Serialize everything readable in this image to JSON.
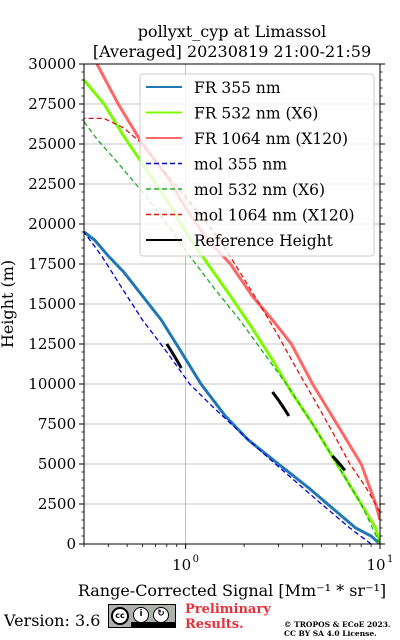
{
  "chart_data": {
    "type": "line",
    "title": "pollyxt_cyp at Limassol",
    "subtitle": "[Averaged] 20230819 21:00-21:59",
    "xlabel": "Range-Corrected Signal [Mm⁻¹ * sr⁻¹]",
    "ylabel": "Height (m)",
    "xscale": "log",
    "xlim": [
      0.3,
      10
    ],
    "ylim": [
      0,
      30000
    ],
    "x_tick_labels": [
      {
        "value": 1,
        "label": "10",
        "exp": "0"
      },
      {
        "value": 10,
        "label": "10",
        "exp": "1"
      }
    ],
    "y_ticks": [
      0,
      2500,
      5000,
      7500,
      10000,
      12500,
      15000,
      17500,
      20000,
      22500,
      25000,
      27500,
      30000
    ],
    "grid": true,
    "legend_position": "top-right",
    "series": [
      {
        "name": "FR 355 nm",
        "color": "#1f77b4",
        "style": "solid",
        "x": [
          10.0,
          9.0,
          7.5,
          6.0,
          4.3,
          3.0,
          2.1,
          1.6,
          1.2,
          0.95,
          0.75,
          0.6,
          0.48,
          0.4,
          0.34,
          0.3
        ],
        "y": [
          0,
          500,
          1000,
          2000,
          3500,
          5000,
          6500,
          8000,
          10000,
          12000,
          14000,
          15500,
          17000,
          18000,
          19000,
          19500
        ]
      },
      {
        "name": "FR 532 nm (X6)",
        "color": "#7cfc00",
        "style": "solid",
        "x": [
          10.0,
          9.5,
          8.0,
          6.0,
          4.5,
          3.5,
          2.8,
          2.2,
          1.7,
          1.3,
          1.0,
          0.8,
          0.62,
          0.48,
          0.38,
          0.3
        ],
        "y": [
          0,
          1000,
          2500,
          5000,
          7500,
          9500,
          11500,
          13500,
          15500,
          17500,
          19500,
          21500,
          23500,
          25500,
          27500,
          29000
        ]
      },
      {
        "name": "FR 1064 nm (X120)",
        "color": "#ff6666",
        "style": "solid",
        "x": [
          10.0,
          9.5,
          8.0,
          6.0,
          4.5,
          3.5,
          2.8,
          2.2,
          1.7,
          1.3,
          1.0,
          0.8,
          0.6,
          0.45,
          0.35
        ],
        "y": [
          1500,
          2500,
          5000,
          7500,
          10000,
          12500,
          14000,
          15500,
          17500,
          19000,
          21000,
          23000,
          25000,
          27500,
          30000
        ]
      },
      {
        "name": "mol 355 nm",
        "color": "#0000cc",
        "style": "dashed",
        "x": [
          9.0,
          7.0,
          5.0,
          3.6,
          2.6,
          1.9,
          1.4,
          1.05,
          0.8,
          0.6,
          0.47,
          0.37,
          0.3
        ],
        "y": [
          0,
          1000,
          2500,
          4000,
          5500,
          7000,
          8500,
          10000,
          12000,
          14000,
          16000,
          18000,
          19500
        ]
      },
      {
        "name": "mol 532 nm (X6)",
        "color": "#22aa22",
        "style": "dashed",
        "x": [
          10.0,
          8.0,
          6.0,
          4.5,
          3.3,
          2.5,
          1.9,
          1.4,
          1.05,
          0.8,
          0.6,
          0.45,
          0.35,
          0.3
        ],
        "y": [
          0,
          2500,
          5000,
          7500,
          10000,
          12000,
          14000,
          16000,
          18000,
          20000,
          22000,
          23800,
          25300,
          26400
        ]
      },
      {
        "name": "mol 1064 nm (X120)",
        "color": "#dd1111",
        "style": "dashed",
        "x": [
          10.0,
          8.5,
          7.0,
          5.7,
          4.6,
          3.7,
          3.0,
          2.4,
          1.9,
          1.5,
          1.2,
          0.95,
          0.75,
          0.6,
          0.48,
          0.38,
          0.3
        ],
        "y": [
          2000,
          3500,
          5000,
          7000,
          9000,
          11000,
          13000,
          15000,
          17000,
          19000,
          20500,
          22000,
          23500,
          25000,
          26000,
          26600,
          26600
        ]
      },
      {
        "name": "Reference Height",
        "color": "#000000",
        "style": "solid",
        "segments": [
          {
            "x": [
              0.8,
              0.85,
              0.9,
              0.95
            ],
            "y": [
              12500,
              12000,
              11500,
              11000
            ]
          },
          {
            "x": [
              2.8,
              3.0,
              3.2,
              3.4
            ],
            "y": [
              9500,
              9000,
              8500,
              8000
            ]
          },
          {
            "x": [
              5.7,
              6.0,
              6.3,
              6.6
            ],
            "y": [
              5500,
              5200,
              4900,
              4600
            ]
          }
        ]
      }
    ]
  },
  "footer": {
    "version": "Version: 3.6",
    "license_badge": {
      "cc": "cc",
      "by": "BY",
      "sa": "SA"
    },
    "preliminary_line1": "Preliminary",
    "preliminary_line2": "Results.",
    "copyright_line1": "© TROPOS & ECoE 2023.",
    "copyright_line2": "CC BY SA 4.0 License."
  }
}
